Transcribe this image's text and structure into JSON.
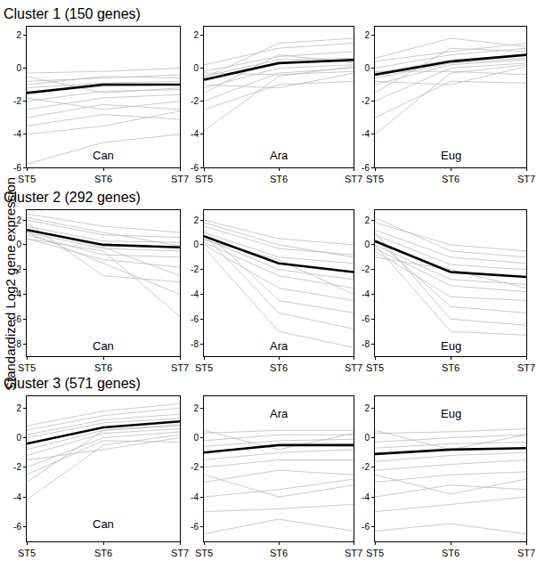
{
  "chart_data": [
    {
      "type": "line",
      "title": "Cluster 1 (150 genes)",
      "categories": [
        "ST5",
        "ST6",
        "ST7"
      ],
      "ylim": [
        -6,
        2.5
      ],
      "yticks": [
        -6,
        -4,
        -2,
        0,
        2
      ],
      "annotations": [
        {
          "text": "Can",
          "x": "ST6",
          "y": -5.3
        }
      ],
      "series": [
        {
          "color": "#bdbdbd",
          "values": [
            -0.3,
            -0.2,
            0.0
          ]
        },
        {
          "color": "#bdbdbd",
          "values": [
            -0.8,
            -0.6,
            -0.4
          ]
        },
        {
          "color": "#bdbdbd",
          "values": [
            -1.2,
            -0.9,
            -0.8
          ]
        },
        {
          "color": "#bdbdbd",
          "values": [
            -1.5,
            -1.1,
            -1.0
          ]
        },
        {
          "color": "#bdbdbd",
          "values": [
            -2.0,
            -1.4,
            -1.3
          ]
        },
        {
          "color": "#bdbdbd",
          "values": [
            -2.5,
            -1.8,
            -1.6
          ]
        },
        {
          "color": "#bdbdbd",
          "values": [
            -3.0,
            -2.2,
            -2.5
          ]
        },
        {
          "color": "#bdbdbd",
          "values": [
            -4.0,
            -3.5,
            -2.6
          ]
        },
        {
          "color": "#bdbdbd",
          "values": [
            -5.8,
            -4.5,
            -4.0
          ]
        },
        {
          "color": "#bdbdbd",
          "values": [
            -1.0,
            -0.5,
            -0.6
          ]
        },
        {
          "color": "#bdbdbd",
          "values": [
            -0.5,
            -1.5,
            -1.2
          ]
        },
        {
          "color": "#bdbdbd",
          "values": [
            -3.5,
            -2.8,
            -3.1
          ]
        },
        {
          "color": "#bdbdbd",
          "values": [
            -1.8,
            -2.5,
            -2.0
          ]
        },
        {
          "color": "#000000",
          "values": [
            -1.5,
            -1.0,
            -1.0
          ]
        }
      ]
    },
    {
      "type": "line",
      "categories": [
        "ST5",
        "ST6",
        "ST7"
      ],
      "ylim": [
        -6,
        2.5
      ],
      "yticks": [
        -6,
        -4,
        -2,
        0,
        2
      ],
      "annotations": [
        {
          "text": "Ara",
          "x": "ST6",
          "y": -5.3
        }
      ],
      "series": [
        {
          "color": "#bdbdbd",
          "values": [
            0.2,
            1.2,
            1.5
          ]
        },
        {
          "color": "#bdbdbd",
          "values": [
            -0.2,
            0.7,
            1.0
          ]
        },
        {
          "color": "#bdbdbd",
          "values": [
            -0.5,
            0.5,
            0.6
          ]
        },
        {
          "color": "#bdbdbd",
          "values": [
            -0.8,
            0.3,
            0.4
          ]
        },
        {
          "color": "#bdbdbd",
          "values": [
            -1.2,
            0.0,
            0.2
          ]
        },
        {
          "color": "#bdbdbd",
          "values": [
            -2.0,
            -0.3,
            0.0
          ]
        },
        {
          "color": "#bdbdbd",
          "values": [
            -3.8,
            -0.5,
            0.1
          ]
        },
        {
          "color": "#bdbdbd",
          "values": [
            -1.5,
            0.8,
            0.3
          ]
        },
        {
          "color": "#bdbdbd",
          "values": [
            -0.3,
            -0.4,
            -0.2
          ]
        },
        {
          "color": "#bdbdbd",
          "values": [
            -2.5,
            -1.0,
            -0.8
          ]
        },
        {
          "color": "#bdbdbd",
          "values": [
            -0.6,
            1.5,
            1.8
          ]
        },
        {
          "color": "#bdbdbd",
          "values": [
            -1.0,
            -1.2,
            -0.3
          ]
        },
        {
          "color": "#000000",
          "values": [
            -0.7,
            0.3,
            0.5
          ]
        }
      ]
    },
    {
      "type": "line",
      "categories": [
        "ST5",
        "ST6",
        "ST7"
      ],
      "ylim": [
        -6,
        2.5
      ],
      "yticks": [
        -6,
        -4,
        -2,
        0,
        2
      ],
      "annotations": [
        {
          "text": "Eug",
          "x": "ST6",
          "y": -5.3
        }
      ],
      "series": [
        {
          "color": "#bdbdbd",
          "values": [
            0.4,
            1.0,
            1.5
          ]
        },
        {
          "color": "#bdbdbd",
          "values": [
            0.0,
            0.8,
            1.2
          ]
        },
        {
          "color": "#bdbdbd",
          "values": [
            -0.3,
            0.5,
            0.8
          ]
        },
        {
          "color": "#bdbdbd",
          "values": [
            -0.6,
            0.3,
            0.6
          ]
        },
        {
          "color": "#bdbdbd",
          "values": [
            -1.0,
            0.2,
            0.5
          ]
        },
        {
          "color": "#bdbdbd",
          "values": [
            -2.0,
            0.0,
            0.3
          ]
        },
        {
          "color": "#bdbdbd",
          "values": [
            -4.0,
            -0.3,
            0.2
          ]
        },
        {
          "color": "#bdbdbd",
          "values": [
            -0.2,
            -0.2,
            -0.4
          ]
        },
        {
          "color": "#bdbdbd",
          "values": [
            -1.5,
            1.2,
            1.0
          ]
        },
        {
          "color": "#bdbdbd",
          "values": [
            -0.8,
            -1.0,
            0.1
          ]
        },
        {
          "color": "#bdbdbd",
          "values": [
            -3.0,
            -0.8,
            -0.9
          ]
        },
        {
          "color": "#bdbdbd",
          "values": [
            0.6,
            1.8,
            1.3
          ]
        },
        {
          "color": "#000000",
          "values": [
            -0.4,
            0.4,
            0.8
          ]
        }
      ]
    },
    {
      "type": "line",
      "title": "Cluster 2 (292 genes)",
      "y_label": "Standardized Log2 gene expression",
      "categories": [
        "ST5",
        "ST6",
        "ST7"
      ],
      "ylim": [
        -9,
        2.8
      ],
      "yticks": [
        -8,
        -6,
        -4,
        -2,
        0,
        2
      ],
      "annotations": [
        {
          "text": "Can",
          "x": "ST6",
          "y": -8.2
        }
      ],
      "series": [
        {
          "color": "#bdbdbd",
          "values": [
            2.5,
            1.5,
            1.0
          ]
        },
        {
          "color": "#bdbdbd",
          "values": [
            2.0,
            0.8,
            0.6
          ]
        },
        {
          "color": "#bdbdbd",
          "values": [
            1.5,
            0.3,
            0.2
          ]
        },
        {
          "color": "#bdbdbd",
          "values": [
            1.2,
            0.0,
            -0.2
          ]
        },
        {
          "color": "#bdbdbd",
          "values": [
            1.0,
            -0.3,
            -0.5
          ]
        },
        {
          "color": "#bdbdbd",
          "values": [
            0.8,
            -0.8,
            -1.0
          ]
        },
        {
          "color": "#bdbdbd",
          "values": [
            0.5,
            -1.2,
            -1.8
          ]
        },
        {
          "color": "#bdbdbd",
          "values": [
            1.8,
            -2.5,
            -3.0
          ]
        },
        {
          "color": "#bdbdbd",
          "values": [
            1.0,
            -1.5,
            -4.0
          ]
        },
        {
          "color": "#bdbdbd",
          "values": [
            0.5,
            -0.5,
            -5.8
          ]
        },
        {
          "color": "#bdbdbd",
          "values": [
            2.2,
            1.0,
            -0.1
          ]
        },
        {
          "color": "#bdbdbd",
          "values": [
            1.3,
            -0.2,
            -2.5
          ]
        },
        {
          "color": "#000000",
          "values": [
            1.2,
            0.0,
            -0.2
          ]
        }
      ]
    },
    {
      "type": "line",
      "categories": [
        "ST5",
        "ST6",
        "ST7"
      ],
      "ylim": [
        -9,
        2.8
      ],
      "yticks": [
        -8,
        -6,
        -4,
        -2,
        0,
        2
      ],
      "annotations": [
        {
          "text": "Ara",
          "x": "ST6",
          "y": -8.2
        }
      ],
      "series": [
        {
          "color": "#bdbdbd",
          "values": [
            2.0,
            0.5,
            0.0
          ]
        },
        {
          "color": "#bdbdbd",
          "values": [
            1.5,
            -0.3,
            -0.8
          ]
        },
        {
          "color": "#bdbdbd",
          "values": [
            1.0,
            -1.0,
            -1.5
          ]
        },
        {
          "color": "#bdbdbd",
          "values": [
            0.7,
            -1.5,
            -2.2
          ]
        },
        {
          "color": "#bdbdbd",
          "values": [
            0.5,
            -2.0,
            -2.8
          ]
        },
        {
          "color": "#bdbdbd",
          "values": [
            0.2,
            -2.5,
            -3.5
          ]
        },
        {
          "color": "#bdbdbd",
          "values": [
            0.0,
            -3.5,
            -4.5
          ]
        },
        {
          "color": "#bdbdbd",
          "values": [
            1.2,
            -4.5,
            -5.5
          ]
        },
        {
          "color": "#bdbdbd",
          "values": [
            0.8,
            -5.5,
            -6.8
          ]
        },
        {
          "color": "#bdbdbd",
          "values": [
            -0.2,
            -7.0,
            -8.3
          ]
        },
        {
          "color": "#bdbdbd",
          "values": [
            1.8,
            0.0,
            -1.0
          ]
        },
        {
          "color": "#bdbdbd",
          "values": [
            0.4,
            -1.2,
            -4.0
          ]
        },
        {
          "color": "#000000",
          "values": [
            0.7,
            -1.5,
            -2.2
          ]
        }
      ]
    },
    {
      "type": "line",
      "categories": [
        "ST5",
        "ST6",
        "ST7"
      ],
      "ylim": [
        -9,
        2.8
      ],
      "yticks": [
        -8,
        -6,
        -4,
        -2,
        0,
        2
      ],
      "annotations": [
        {
          "text": "Eug",
          "x": "ST6",
          "y": -8.2
        }
      ],
      "series": [
        {
          "color": "#bdbdbd",
          "values": [
            1.8,
            0.0,
            -0.5
          ]
        },
        {
          "color": "#bdbdbd",
          "values": [
            1.2,
            -1.0,
            -1.5
          ]
        },
        {
          "color": "#bdbdbd",
          "values": [
            0.8,
            -1.6,
            -2.0
          ]
        },
        {
          "color": "#bdbdbd",
          "values": [
            0.3,
            -2.2,
            -2.6
          ]
        },
        {
          "color": "#bdbdbd",
          "values": [
            0.0,
            -2.8,
            -3.2
          ]
        },
        {
          "color": "#bdbdbd",
          "values": [
            -0.3,
            -3.3,
            -3.8
          ]
        },
        {
          "color": "#bdbdbd",
          "values": [
            -0.5,
            -4.2,
            -4.5
          ]
        },
        {
          "color": "#bdbdbd",
          "values": [
            0.5,
            -5.0,
            -5.5
          ]
        },
        {
          "color": "#bdbdbd",
          "values": [
            1.0,
            -6.0,
            -6.5
          ]
        },
        {
          "color": "#bdbdbd",
          "values": [
            0.0,
            -7.0,
            -7.3
          ]
        },
        {
          "color": "#bdbdbd",
          "values": [
            2.2,
            -0.5,
            -1.0
          ]
        },
        {
          "color": "#bdbdbd",
          "values": [
            -1.0,
            -2.0,
            -3.5
          ]
        },
        {
          "color": "#000000",
          "values": [
            0.3,
            -2.2,
            -2.6
          ]
        }
      ]
    },
    {
      "type": "line",
      "title": "Cluster 3 (571 genes)",
      "categories": [
        "ST5",
        "ST6",
        "ST7"
      ],
      "ylim": [
        -7,
        2.8
      ],
      "yticks": [
        -6,
        -4,
        -2,
        0,
        2
      ],
      "annotations": [
        {
          "text": "Can",
          "x": "ST6",
          "y": -5.8
        }
      ],
      "series": [
        {
          "color": "#bdbdbd",
          "values": [
            0.5,
            1.5,
            2.0
          ]
        },
        {
          "color": "#bdbdbd",
          "values": [
            0.2,
            1.2,
            1.6
          ]
        },
        {
          "color": "#bdbdbd",
          "values": [
            0.0,
            1.0,
            1.3
          ]
        },
        {
          "color": "#bdbdbd",
          "values": [
            -0.4,
            0.7,
            1.1
          ]
        },
        {
          "color": "#bdbdbd",
          "values": [
            -0.8,
            0.5,
            0.9
          ]
        },
        {
          "color": "#bdbdbd",
          "values": [
            -1.2,
            0.3,
            0.6
          ]
        },
        {
          "color": "#bdbdbd",
          "values": [
            -2.0,
            0.0,
            0.4
          ]
        },
        {
          "color": "#bdbdbd",
          "values": [
            -3.0,
            0.5,
            0.8
          ]
        },
        {
          "color": "#bdbdbd",
          "values": [
            -4.2,
            -0.5,
            0.2
          ]
        },
        {
          "color": "#bdbdbd",
          "values": [
            -1.5,
            -0.8,
            0.0
          ]
        },
        {
          "color": "#bdbdbd",
          "values": [
            0.8,
            1.8,
            2.3
          ]
        },
        {
          "color": "#bdbdbd",
          "values": [
            -2.5,
            -0.2,
            -0.3
          ]
        },
        {
          "color": "#000000",
          "values": [
            -0.4,
            0.7,
            1.1
          ]
        }
      ]
    },
    {
      "type": "line",
      "categories": [
        "ST5",
        "ST6",
        "ST7"
      ],
      "ylim": [
        -7,
        2.8
      ],
      "yticks": [
        -6,
        -4,
        -2,
        0,
        2
      ],
      "annotations": [
        {
          "text": "Ara",
          "x": "ST6",
          "y": 1.6
        }
      ],
      "series": [
        {
          "color": "#bdbdbd",
          "values": [
            0.3,
            0.5,
            0.5
          ]
        },
        {
          "color": "#bdbdbd",
          "values": [
            -0.2,
            0.2,
            0.2
          ]
        },
        {
          "color": "#bdbdbd",
          "values": [
            -0.6,
            -0.2,
            -0.1
          ]
        },
        {
          "color": "#bdbdbd",
          "values": [
            -1.0,
            -0.5,
            -0.5
          ]
        },
        {
          "color": "#bdbdbd",
          "values": [
            -1.5,
            -1.0,
            -0.8
          ]
        },
        {
          "color": "#bdbdbd",
          "values": [
            -2.0,
            -1.5,
            -1.5
          ]
        },
        {
          "color": "#bdbdbd",
          "values": [
            -3.0,
            -2.2,
            -2.5
          ]
        },
        {
          "color": "#bdbdbd",
          "values": [
            -4.0,
            -3.5,
            -2.8
          ]
        },
        {
          "color": "#bdbdbd",
          "values": [
            -5.0,
            -4.8,
            -4.5
          ]
        },
        {
          "color": "#bdbdbd",
          "values": [
            -6.5,
            -5.5,
            -6.3
          ]
        },
        {
          "color": "#bdbdbd",
          "values": [
            -2.5,
            -4.0,
            -3.2
          ]
        },
        {
          "color": "#bdbdbd",
          "values": [
            0.5,
            -0.8,
            0.3
          ]
        },
        {
          "color": "#000000",
          "values": [
            -1.0,
            -0.5,
            -0.5
          ]
        }
      ]
    },
    {
      "type": "line",
      "categories": [
        "ST5",
        "ST6",
        "ST7"
      ],
      "ylim": [
        -7,
        2.8
      ],
      "yticks": [
        -6,
        -4,
        -2,
        0,
        2
      ],
      "annotations": [
        {
          "text": "Eug",
          "x": "ST6",
          "y": 1.6
        }
      ],
      "series": [
        {
          "color": "#bdbdbd",
          "values": [
            0.3,
            0.4,
            0.6
          ]
        },
        {
          "color": "#bdbdbd",
          "values": [
            -0.3,
            0.0,
            0.2
          ]
        },
        {
          "color": "#bdbdbd",
          "values": [
            -0.7,
            -0.4,
            -0.3
          ]
        },
        {
          "color": "#bdbdbd",
          "values": [
            -1.1,
            -0.8,
            -0.7
          ]
        },
        {
          "color": "#bdbdbd",
          "values": [
            -1.6,
            -1.2,
            -1.0
          ]
        },
        {
          "color": "#bdbdbd",
          "values": [
            -2.2,
            -1.8,
            -1.5
          ]
        },
        {
          "color": "#bdbdbd",
          "values": [
            -3.0,
            -2.5,
            -2.3
          ]
        },
        {
          "color": "#bdbdbd",
          "values": [
            -4.0,
            -3.2,
            -3.5
          ]
        },
        {
          "color": "#bdbdbd",
          "values": [
            -5.0,
            -4.5,
            -4.0
          ]
        },
        {
          "color": "#bdbdbd",
          "values": [
            -6.3,
            -5.8,
            -6.5
          ]
        },
        {
          "color": "#bdbdbd",
          "values": [
            -2.5,
            -3.8,
            -2.8
          ]
        },
        {
          "color": "#bdbdbd",
          "values": [
            0.5,
            -0.8,
            0.2
          ]
        },
        {
          "color": "#000000",
          "values": [
            -1.1,
            -0.8,
            -0.7
          ]
        }
      ]
    }
  ]
}
